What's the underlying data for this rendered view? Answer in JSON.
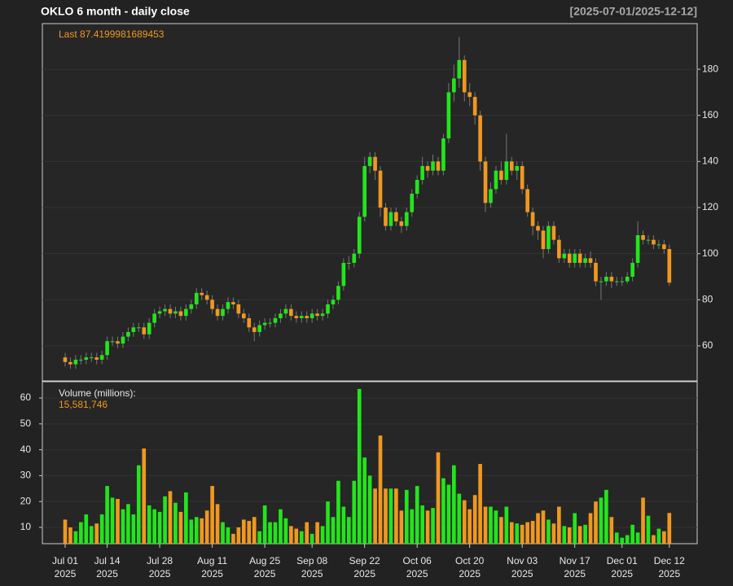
{
  "chart_data": {
    "type": "candlestick",
    "title": "OKLO  6 month - daily close",
    "date_range": "[2025-07-01/2025-12-12]",
    "last_label": "Last",
    "up_color": "#22e51c",
    "down_color": "#f0981f",
    "grid": true,
    "open": [
      55,
      53,
      52,
      54,
      54,
      55,
      55,
      54,
      56,
      62,
      62,
      61,
      64,
      66,
      68,
      68,
      65,
      70,
      74,
      75,
      76,
      74,
      75,
      73,
      76,
      78,
      83,
      82,
      80,
      76,
      73,
      76,
      79,
      78,
      74,
      72,
      68,
      66,
      69,
      70,
      70,
      72,
      74,
      76,
      73,
      72,
      73,
      72,
      74,
      73,
      74,
      78,
      80,
      86,
      96,
      96,
      100,
      116,
      138,
      142,
      136,
      120,
      112,
      118,
      114,
      112,
      118,
      126,
      132,
      138,
      136,
      140,
      136,
      150,
      170,
      176,
      184,
      170,
      168,
      160,
      140,
      122,
      128,
      136,
      132,
      140,
      136,
      138,
      128,
      118,
      112,
      110,
      102,
      112,
      106,
      98,
      100,
      96,
      100,
      96,
      98,
      96,
      88,
      88,
      90,
      88,
      88,
      88,
      90,
      96,
      108,
      106,
      106,
      104,
      104,
      102
    ],
    "high": [
      57,
      55,
      56,
      56,
      57,
      57,
      57,
      58,
      64,
      64,
      64,
      66,
      68,
      70,
      70,
      70,
      72,
      76,
      77,
      78,
      78,
      77,
      77,
      78,
      80,
      85,
      85,
      84,
      82,
      78,
      78,
      81,
      81,
      80,
      76,
      74,
      70,
      71,
      72,
      72,
      74,
      76,
      78,
      78,
      75,
      75,
      75,
      76,
      76,
      76,
      80,
      82,
      88,
      98,
      99,
      102,
      118,
      142,
      144,
      144,
      138,
      122,
      120,
      120,
      116,
      120,
      128,
      134,
      142,
      140,
      143,
      142,
      152,
      174,
      182,
      194,
      186,
      174,
      170,
      162,
      142,
      131,
      138,
      140,
      152,
      142,
      140,
      140,
      130,
      120,
      114,
      112,
      114,
      114,
      108,
      102,
      102,
      102,
      102,
      100,
      101,
      98,
      90,
      92,
      92,
      90,
      90,
      92,
      98,
      114,
      110,
      108,
      108,
      106,
      106,
      104
    ],
    "low": [
      51,
      50,
      50,
      52,
      52,
      53,
      52,
      52,
      54,
      60,
      59,
      59,
      62,
      64,
      66,
      63,
      63,
      68,
      72,
      73,
      72,
      72,
      71,
      71,
      74,
      76,
      80,
      78,
      74,
      71,
      71,
      74,
      76,
      72,
      70,
      66,
      62,
      64,
      67,
      68,
      68,
      70,
      72,
      71,
      70,
      70,
      70,
      70,
      71,
      71,
      72,
      76,
      78,
      84,
      93,
      94,
      98,
      114,
      135,
      132,
      116,
      110,
      110,
      112,
      109,
      110,
      116,
      124,
      130,
      133,
      134,
      134,
      134,
      148,
      166,
      172,
      166,
      164,
      156,
      136,
      118,
      120,
      126,
      130,
      130,
      134,
      132,
      126,
      116,
      108,
      106,
      98,
      100,
      104,
      96,
      96,
      94,
      94,
      94,
      94,
      94,
      86,
      80,
      86,
      85,
      86,
      86,
      87,
      88,
      94,
      104,
      104,
      102,
      102,
      100,
      86
    ],
    "close": [
      53,
      52,
      54,
      54,
      55,
      55,
      54,
      56,
      62,
      62,
      61,
      64,
      66,
      68,
      68,
      65,
      70,
      74,
      75,
      76,
      74,
      75,
      73,
      76,
      78,
      83,
      82,
      80,
      76,
      73,
      76,
      79,
      78,
      74,
      72,
      68,
      66,
      69,
      70,
      70,
      72,
      74,
      76,
      73,
      72,
      73,
      72,
      74,
      73,
      74,
      78,
      80,
      86,
      96,
      96,
      100,
      116,
      138,
      142,
      136,
      120,
      112,
      118,
      114,
      112,
      118,
      126,
      132,
      138,
      136,
      140,
      136,
      150,
      170,
      176,
      184,
      170,
      168,
      160,
      140,
      122,
      128,
      136,
      132,
      140,
      136,
      138,
      128,
      118,
      112,
      110,
      102,
      112,
      106,
      98,
      100,
      96,
      100,
      96,
      98,
      96,
      88,
      88,
      90,
      88,
      88,
      88,
      90,
      96,
      108,
      106,
      106,
      104,
      104,
      102,
      87.4199981689453
    ],
    "volume": {
      "name": "Volume (millions):",
      "last_label": "15,581,746",
      "values": [
        13,
        10,
        8.5,
        12,
        15,
        10.5,
        11.5,
        15,
        26,
        21.5,
        21,
        17,
        19,
        15,
        34,
        40.5,
        18.5,
        17,
        16,
        22,
        24,
        19.5,
        16,
        23.5,
        13,
        14,
        13.5,
        16.5,
        26,
        19,
        12,
        10,
        7.5,
        10,
        13,
        12.5,
        14,
        8.5,
        18.5,
        12,
        12,
        17,
        13.5,
        10.5,
        9.5,
        8.5,
        12,
        7.5,
        12,
        10.5,
        20,
        14,
        28,
        18,
        14,
        28,
        63.5,
        37,
        30,
        25,
        45.5,
        25,
        25,
        25,
        16.5,
        24.5,
        17,
        26,
        18.5,
        16.5,
        17.5,
        39,
        29,
        26.5,
        34,
        23,
        20.5,
        17,
        22.5,
        34.5,
        18,
        18,
        16.5,
        14,
        18,
        12,
        11.5,
        11,
        12,
        12.5,
        15.5,
        16.5,
        13,
        11.5,
        18,
        10.5,
        10,
        15.5,
        10.5,
        11,
        15.5,
        20,
        21.5,
        24.5,
        14,
        8,
        6,
        7,
        11,
        8,
        21.5,
        14.5,
        7,
        9.5,
        8.5,
        15.581746
      ],
      "ylim": [
        3.7,
        66.3
      ],
      "yticks": [
        10,
        20,
        30,
        40,
        50,
        60
      ]
    },
    "xlim": [
      -4.34,
      120.3
    ],
    "xticks": [
      {
        "value": 0,
        "label": "Jul 01",
        "year": "2025"
      },
      {
        "value": 8,
        "label": "Jul 14",
        "year": "2025"
      },
      {
        "value": 18,
        "label": "Jul 28",
        "year": "2025"
      },
      {
        "value": 28,
        "label": "Aug 11",
        "year": "2025"
      },
      {
        "value": 38,
        "label": "Aug 25",
        "year": "2025"
      },
      {
        "value": 47,
        "label": "Sep 08",
        "year": "2025"
      },
      {
        "value": 57,
        "label": "Sep 22",
        "year": "2025"
      },
      {
        "value": 67,
        "label": "Oct 06",
        "year": "2025"
      },
      {
        "value": 77,
        "label": "Oct 20",
        "year": "2025"
      },
      {
        "value": 87,
        "label": "Nov 03",
        "year": "2025"
      },
      {
        "value": 97,
        "label": "Nov 17",
        "year": "2025"
      },
      {
        "value": 106,
        "label": "Dec 01",
        "year": "2025"
      },
      {
        "value": 115,
        "label": "Dec 12",
        "year": "2025"
      }
    ],
    "ylim": [
      44.8,
      199.8
    ],
    "yticks": [
      60,
      80,
      100,
      120,
      140,
      160,
      180
    ]
  }
}
